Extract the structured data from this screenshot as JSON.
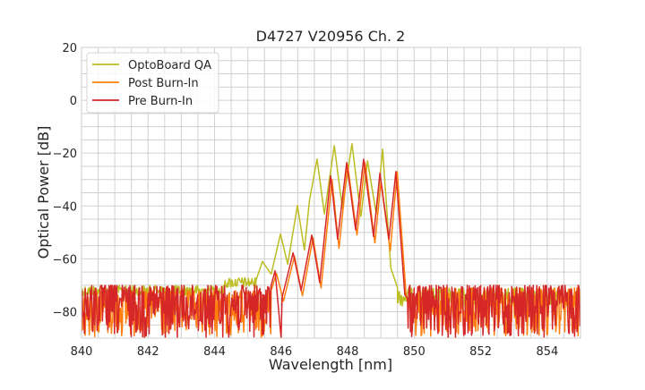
{
  "chart_data": {
    "type": "line",
    "title": "D4727 V20956 Ch. 2",
    "xlabel": "Wavelength [nm]",
    "ylabel": "Optical Power [dB]",
    "xlim": [
      840,
      855
    ],
    "ylim": [
      -90,
      20
    ],
    "xticks": [
      840,
      842,
      844,
      846,
      848,
      850,
      852,
      854
    ],
    "yticks": [
      -80,
      -60,
      -40,
      -20,
      0,
      20
    ],
    "xtick_labels": [
      "840",
      "842",
      "844",
      "846",
      "848",
      "850",
      "852",
      "854"
    ],
    "ytick_labels": [
      "−80",
      "−60",
      "−40",
      "−20",
      "0",
      "20"
    ],
    "grid": true,
    "minor_grid": {
      "x_step": 0.5,
      "y_step": 5
    },
    "legend_placement": "top-left",
    "series": [
      {
        "name": "OptoBoard QA",
        "color": "#bcbd22",
        "noise_floor": [
          [
            840,
            844.3,
            -70,
            -74
          ],
          [
            844.3,
            845.25,
            -67,
            -71
          ],
          [
            849.5,
            855,
            -71,
            -78
          ]
        ],
        "points": [
          [
            845.25,
            -68
          ],
          [
            845.44,
            -61
          ],
          [
            845.7,
            -65.8
          ],
          [
            845.98,
            -50.6
          ],
          [
            846.2,
            -62
          ],
          [
            846.49,
            -39.8
          ],
          [
            846.7,
            -56.7
          ],
          [
            846.85,
            -38
          ],
          [
            847.08,
            -22.2
          ],
          [
            847.3,
            -43
          ],
          [
            847.6,
            -17.2
          ],
          [
            847.84,
            -40.8
          ],
          [
            848.13,
            -16.5
          ],
          [
            848.4,
            -43.9
          ],
          [
            848.6,
            -22.9
          ],
          [
            848.86,
            -43
          ],
          [
            849.05,
            -18.5
          ],
          [
            849.3,
            -63.5
          ],
          [
            849.5,
            -71
          ]
        ]
      },
      {
        "name": "Post Burn-In",
        "color": "#ff7f0e",
        "noise_floor": [
          [
            840,
            845.7,
            -72,
            -90
          ],
          [
            849.85,
            855,
            -71,
            -90
          ]
        ],
        "points": [
          [
            845.7,
            -72
          ],
          [
            845.86,
            -65.5
          ],
          [
            846.07,
            -76
          ],
          [
            846.4,
            -59
          ],
          [
            846.64,
            -74
          ],
          [
            846.96,
            -52
          ],
          [
            847.2,
            -71
          ],
          [
            847.53,
            -30
          ],
          [
            847.74,
            -56
          ],
          [
            848.0,
            -24.5
          ],
          [
            848.28,
            -51
          ],
          [
            848.52,
            -23.5
          ],
          [
            848.82,
            -54
          ],
          [
            849.0,
            -31
          ],
          [
            849.28,
            -57
          ],
          [
            849.49,
            -27
          ],
          [
            849.76,
            -74
          ],
          [
            849.85,
            -76
          ]
        ]
      },
      {
        "name": "Pre Burn-In",
        "color": "#d62728",
        "noise_floor": [
          [
            840,
            845.7,
            -70,
            -90
          ],
          [
            849.8,
            855,
            -70,
            -90
          ]
        ],
        "points": [
          [
            845.7,
            -70
          ],
          [
            845.82,
            -64.5
          ],
          [
            846.0,
            -90
          ],
          [
            846.03,
            -74.6
          ],
          [
            846.36,
            -57.7
          ],
          [
            846.6,
            -72
          ],
          [
            846.92,
            -51
          ],
          [
            847.16,
            -69
          ],
          [
            847.49,
            -28.6
          ],
          [
            847.7,
            -52.6
          ],
          [
            847.97,
            -23.6
          ],
          [
            848.24,
            -49
          ],
          [
            848.48,
            -22.3
          ],
          [
            848.78,
            -51.6
          ],
          [
            848.97,
            -27.6
          ],
          [
            849.24,
            -52.6
          ],
          [
            849.45,
            -27
          ],
          [
            849.72,
            -73.6
          ],
          [
            849.8,
            -75
          ]
        ]
      }
    ]
  }
}
